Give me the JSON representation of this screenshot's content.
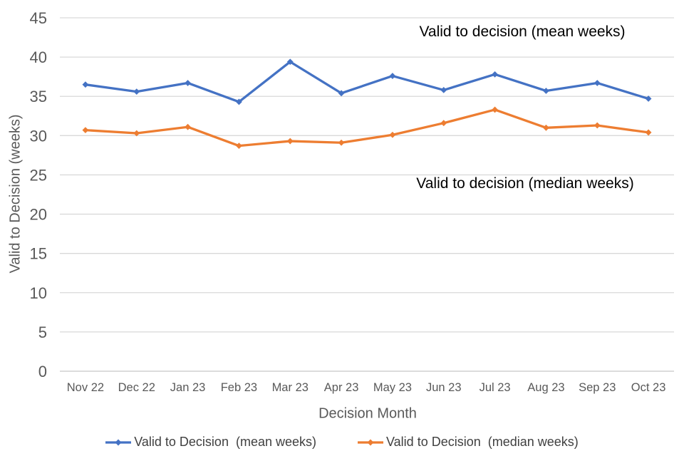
{
  "chart_data": {
    "type": "line",
    "title": "",
    "xlabel": "Decision Month",
    "ylabel": "Valid to Decision (weeks)",
    "categories": [
      "Nov 22",
      "Dec 22",
      "Jan 23",
      "Feb 23",
      "Mar 23",
      "Apr 23",
      "May 23",
      "Jun 23",
      "Jul 23",
      "Aug 23",
      "Sep 23",
      "Oct 23"
    ],
    "series": [
      {
        "name": "Valid to Decision  (mean weeks)",
        "color": "#4472C4",
        "values": [
          36.5,
          35.6,
          36.7,
          34.3,
          39.4,
          35.4,
          37.6,
          35.8,
          37.8,
          35.7,
          36.7,
          34.7
        ]
      },
      {
        "name": "Valid to Decision  (median weeks)",
        "color": "#ED7D31",
        "values": [
          30.7,
          30.3,
          31.1,
          28.7,
          29.3,
          29.1,
          30.1,
          31.6,
          33.3,
          31.0,
          31.3,
          30.4
        ]
      }
    ],
    "ylim": [
      0,
      45
    ],
    "yticks": [
      0,
      5,
      10,
      15,
      20,
      25,
      30,
      35,
      40,
      45
    ],
    "grid": "horizontal-only",
    "legend_position": "bottom",
    "annotations": [
      {
        "text": "Valid to decision (mean weeks)",
        "series": "mean"
      },
      {
        "text": "Valid to decision (median weeks)",
        "series": "median"
      }
    ]
  },
  "colors": {
    "mean_line": "#4472C4",
    "median_line": "#ED7D31",
    "gridline": "#D9D9D9",
    "baseline": "#C6C6C6",
    "axis_text": "#595959",
    "legend_text": "#404040",
    "annotation_text": "#000000",
    "background": "#FFFFFF"
  }
}
